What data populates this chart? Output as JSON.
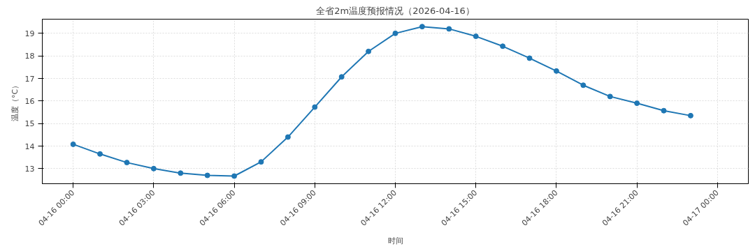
{
  "chart_data": {
    "type": "line",
    "title": "全省2m温度预报情况（2026-04-16）",
    "xlabel": "时间",
    "ylabel": "温度（°C）",
    "x": [
      "2026-04-16T00:00",
      "2026-04-16T01:00",
      "2026-04-16T02:00",
      "2026-04-16T03:00",
      "2026-04-16T04:00",
      "2026-04-16T05:00",
      "2026-04-16T06:00",
      "2026-04-16T07:00",
      "2026-04-16T08:00",
      "2026-04-16T09:00",
      "2026-04-16T10:00",
      "2026-04-16T11:00",
      "2026-04-16T12:00",
      "2026-04-16T13:00",
      "2026-04-16T14:00",
      "2026-04-16T15:00",
      "2026-04-16T16:00",
      "2026-04-16T17:00",
      "2026-04-16T18:00",
      "2026-04-16T19:00",
      "2026-04-16T20:00",
      "2026-04-16T21:00",
      "2026-04-16T22:00",
      "2026-04-16T23:00"
    ],
    "series": [
      {
        "color": "#1f77b4",
        "values": [
          14.08,
          13.65,
          13.27,
          13.0,
          12.8,
          12.7,
          12.67,
          13.3,
          14.4,
          15.73,
          17.07,
          18.2,
          19.0,
          19.3,
          19.2,
          18.87,
          18.43,
          17.9,
          17.33,
          16.7,
          16.2,
          15.9,
          15.57,
          15.35
        ]
      }
    ],
    "xlim": [
      "2026-04-15T22:51",
      "2026-04-17T01:09"
    ],
    "xticks": [
      {
        "value": "2026-04-16T00:00",
        "label": "04-16 00:00"
      },
      {
        "value": "2026-04-16T03:00",
        "label": "04-16 03:00"
      },
      {
        "value": "2026-04-16T06:00",
        "label": "04-16 06:00"
      },
      {
        "value": "2026-04-16T09:00",
        "label": "04-16 09:00"
      },
      {
        "value": "2026-04-16T12:00",
        "label": "04-16 12:00"
      },
      {
        "value": "2026-04-16T15:00",
        "label": "04-16 15:00"
      },
      {
        "value": "2026-04-16T18:00",
        "label": "04-16 18:00"
      },
      {
        "value": "2026-04-16T21:00",
        "label": "04-16 21:00"
      },
      {
        "value": "2026-04-17T00:00",
        "label": "04-17 00:00"
      }
    ],
    "ylim": [
      12.33,
      19.63
    ],
    "yticks": [
      13,
      14,
      15,
      16,
      17,
      18,
      19
    ],
    "grid": true,
    "marker": "circle",
    "line_style": "solid"
  }
}
